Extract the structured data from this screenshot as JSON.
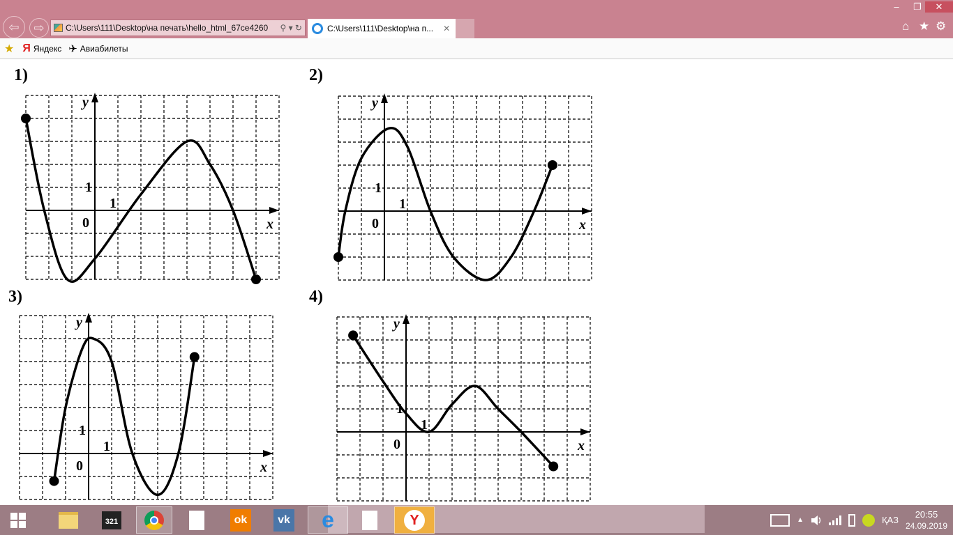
{
  "browser": {
    "address": "C:\\Users\\111\\Desktop\\на печать\\hello_html_67ce4260",
    "address_tools": "⚲ ▾ ↻",
    "back_icon": "arrow-left-icon",
    "forward_icon": "arrow-right-icon",
    "tab_title": "C:\\Users\\111\\Desktop\\на п...",
    "tab_close": "✕",
    "window_controls": [
      "–",
      "❐",
      "✕"
    ],
    "right_icons": [
      "⌂",
      "★",
      "⚙"
    ]
  },
  "favorites": {
    "items": [
      {
        "label": "Яндекс",
        "icon": "Я"
      },
      {
        "label": "Авиабилеты",
        "icon": "✈"
      }
    ]
  },
  "graphs": [
    {
      "label": "1)",
      "xlim": [
        -3,
        8
      ],
      "ylim": [
        -3,
        5
      ],
      "points": [
        [
          -3,
          4
        ],
        [
          -2.2,
          0
        ],
        [
          -1.2,
          -3
        ],
        [
          0,
          -2.1
        ],
        [
          2,
          0.7
        ],
        [
          4,
          3
        ],
        [
          5,
          2
        ],
        [
          6,
          0
        ],
        [
          7,
          -3
        ]
      ]
    },
    {
      "label": "2)",
      "xlim": [
        -2,
        9
      ],
      "ylim": [
        -3,
        5
      ],
      "points": [
        [
          -2,
          -2
        ],
        [
          -1.7,
          0
        ],
        [
          -1,
          2.3
        ],
        [
          0.2,
          3.6
        ],
        [
          1,
          2.8
        ],
        [
          2,
          0
        ],
        [
          3,
          -2
        ],
        [
          4.4,
          -3
        ],
        [
          5.5,
          -2
        ],
        [
          6.5,
          0
        ],
        [
          7.3,
          2
        ]
      ]
    },
    {
      "label": "3)",
      "xlim": [
        -3,
        8
      ],
      "ylim": [
        -2,
        6
      ],
      "points": [
        [
          -1.5,
          -1.2
        ],
        [
          -1,
          2
        ],
        [
          -0.3,
          4.5
        ],
        [
          0.2,
          5
        ],
        [
          1,
          4
        ],
        [
          1.9,
          0
        ],
        [
          3,
          -1.8
        ],
        [
          3.9,
          0
        ],
        [
          4.6,
          4.2
        ]
      ]
    },
    {
      "label": "4)",
      "xlim": [
        -3,
        8
      ],
      "ylim": [
        -3,
        5
      ],
      "points": [
        [
          -2.3,
          4.2
        ],
        [
          -1,
          2.2
        ],
        [
          0,
          0.8
        ],
        [
          1,
          0
        ],
        [
          2,
          1.2
        ],
        [
          3,
          2
        ],
        [
          4,
          1
        ],
        [
          5,
          0
        ],
        [
          6.4,
          -1.5
        ]
      ]
    }
  ],
  "axis": {
    "x": "x",
    "y": "y",
    "origin": "0",
    "unit": "1"
  },
  "taskbar": {
    "apps": [
      "windows-start",
      "file-explorer",
      "media-player-classic",
      "chrome",
      "file",
      "odnoklassniki",
      "vk",
      "internet-explorer",
      "file",
      "yandex-browser"
    ],
    "language": "ҚАЗ",
    "time": "20:55",
    "date": "24.09.2019"
  }
}
